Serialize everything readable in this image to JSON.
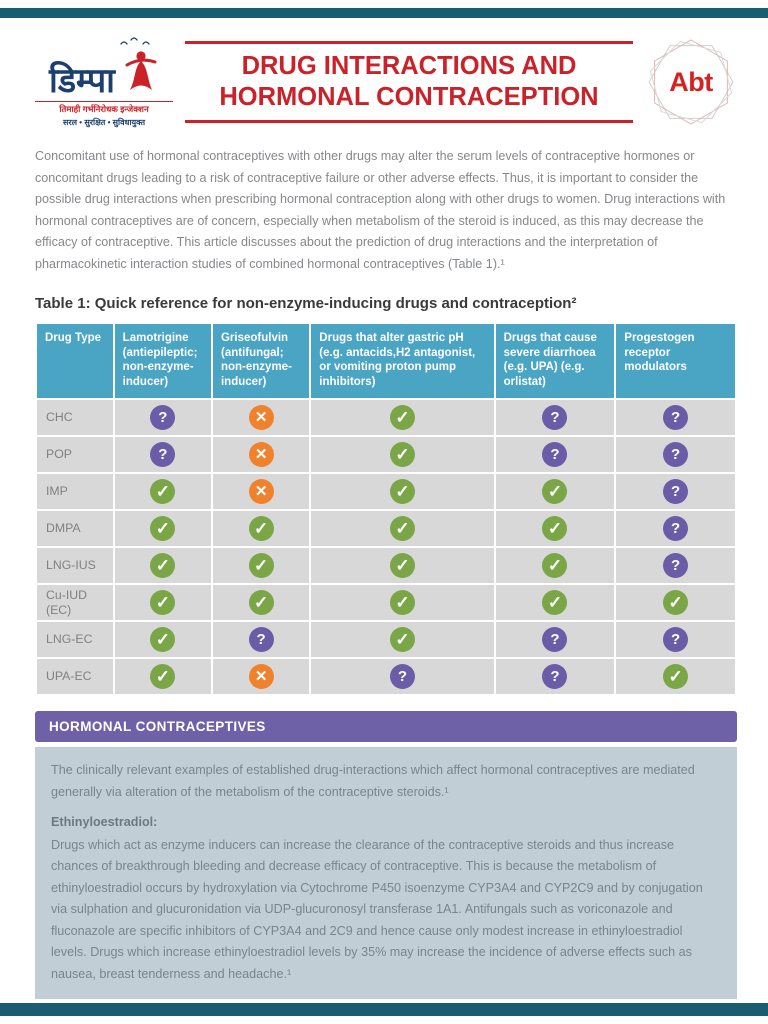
{
  "page": {
    "accent_red": "#cb2229",
    "teal_dark": "#1a5d70",
    "teal_header": "#4aa4c4",
    "banner_purple": "#6e61a8",
    "box_bg": "#c2ced5"
  },
  "logo": {
    "name": "डिम्पा",
    "tagline1": "तिमाही गर्भनिरोधक इन्जेक्शन",
    "tagline2": "सरल • सुरक्षित • सुविधायुक्त"
  },
  "header": {
    "title_line1": "DRUG INTERACTIONS AND",
    "title_line2": "HORMONAL CONTRACEPTION",
    "abt_label": "Abt"
  },
  "intro": "Concomitant use of hormonal contraceptives with other drugs may alter the serum levels of contraceptive hormones or concomitant drugs leading to a risk of contraceptive failure or other adverse effects. Thus, it is important to consider the possible drug interactions when prescribing hormonal contraception along with other drugs to women. Drug interactions with hormonal contraceptives are of concern, especially when metabolism of the steroid is induced, as this may decrease the efficacy of contraceptive. This article discusses about the prediction of drug interactions and the interpretation of pharmacokinetic interaction studies of combined hormonal contraceptives (Table 1).¹",
  "table": {
    "title": "Table 1: Quick reference for non-enzyme-inducing drugs and contraception²",
    "columns": [
      "Drug Type",
      "Lamotrigine (antiepileptic; non-enzyme-inducer)",
      "Griseofulvin (antifungal; non-enzyme-inducer)",
      "Drugs that alter gastric pH (e.g. antacids,H2 antagonist, or vomiting proton pump inhibitors)",
      "Drugs that cause severe diarrhoea (e.g. UPA) (e.g. orlistat)",
      "Progestogen receptor modulators"
    ],
    "icons": {
      "question": {
        "glyph": "?",
        "color": "#6a5ca7"
      },
      "cross": {
        "glyph": "✕",
        "color": "#f0822d"
      },
      "check": {
        "glyph": "✓",
        "color": "#7aa647"
      }
    },
    "rows": [
      {
        "drug": "CHC",
        "cells": [
          "question",
          "cross",
          "check",
          "question",
          "question"
        ]
      },
      {
        "drug": "POP",
        "cells": [
          "question",
          "cross",
          "check",
          "question",
          "question"
        ]
      },
      {
        "drug": "IMP",
        "cells": [
          "check",
          "cross",
          "check",
          "check",
          "question"
        ]
      },
      {
        "drug": "DMPA",
        "cells": [
          "check",
          "check",
          "check",
          "check",
          "question"
        ]
      },
      {
        "drug": "LNG-IUS",
        "cells": [
          "check",
          "check",
          "check",
          "check",
          "question"
        ]
      },
      {
        "drug": "Cu-IUD (EC)",
        "cells": [
          "check",
          "check",
          "check",
          "check",
          "check"
        ]
      },
      {
        "drug": "LNG-EC",
        "cells": [
          "check",
          "question",
          "check",
          "question",
          "question"
        ]
      },
      {
        "drug": "UPA-EC",
        "cells": [
          "check",
          "cross",
          "question",
          "question",
          "check"
        ]
      }
    ]
  },
  "section": {
    "heading": "HORMONAL CONTRACEPTIVES",
    "para1": "The clinically relevant examples of established drug-interactions which affect hormonal contraceptives are mediated generally via alteration of the metabolism of the contraceptive steroids.¹",
    "subheading": "Ethinyloestradiol:",
    "para2": "Drugs which act as enzyme inducers can increase the clearance of the contraceptive steroids and thus increase chances of breakthrough bleeding and decrease efficacy of contraceptive. This is because the metabolism of ethinyloestradiol occurs by hydroxylation via Cytochrome P450 isoenzyme CYP3A4 and CYP2C9 and by conjugation via sulphation and glucuronidation via UDP-glucuronosyl transferase 1A1.  Antifungals such as voriconazole and fluconazole are specific inhibitors of CYP3A4 and 2C9 and hence cause only modest increase in ethinyloestradiol levels. Drugs which increase ethinyloestradiol levels by 35% may increase the incidence of adverse effects such as nausea, breast tenderness and headache.¹"
  }
}
